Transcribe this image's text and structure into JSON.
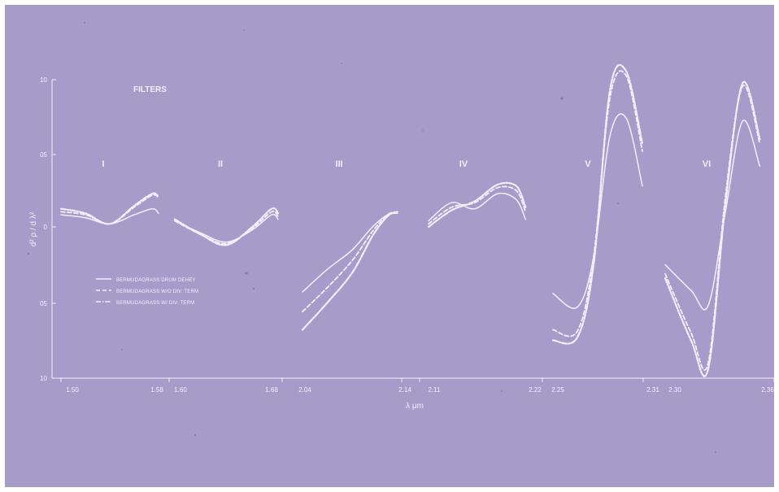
{
  "chart_data": {
    "type": "line",
    "title": "FILTERS",
    "xlabel": "λ μm",
    "ylabel": "d² ρ / d λ²",
    "y_axis": {
      "ticks": [
        "10",
        "05",
        "0",
        "05",
        "10"
      ],
      "values": [
        1.0,
        0.5,
        0.0,
        -0.5,
        -1.0
      ],
      "ylim": [
        -1.0,
        1.0
      ]
    },
    "legend": [
      {
        "label": "BERMUDAGRASS  DRUM  DEHEY",
        "style": "solid"
      },
      {
        "label": "BERMUDAGRASS  W/O  DIV.  TERM",
        "style": "dashed"
      },
      {
        "label": "BERMUDAGRASS  W/  DIV.  TERM",
        "style": "dashdot"
      }
    ],
    "grid": false,
    "colors": {
      "background": "#a79cc9",
      "curves": "#f2efff"
    },
    "panels": [
      {
        "label": "I",
        "x_ticks": [
          "1.50",
          "1.58"
        ],
        "xlim": [
          1.5,
          1.58
        ],
        "x": [
          1.5,
          1.52,
          1.54,
          1.56,
          1.575,
          1.58
        ],
        "series": [
          {
            "name": "BERMUDAGRASS  DRUM  DEHEY",
            "values": [
              0.08,
              0.06,
              0.02,
              0.08,
              0.12,
              0.09
            ]
          },
          {
            "name": "BERMUDAGRASS  W/O  DIV.  TERM",
            "values": [
              0.1,
              0.08,
              0.02,
              0.13,
              0.21,
              0.19
            ]
          },
          {
            "name": "BERMUDAGRASS  W/  DIV.  TERM",
            "values": [
              0.12,
              0.09,
              0.02,
              0.14,
              0.22,
              0.2
            ]
          }
        ]
      },
      {
        "label": "II",
        "x_ticks": [
          "1.60",
          "1.68"
        ],
        "xlim": [
          1.6,
          1.68
        ],
        "x": [
          1.6,
          1.62,
          1.64,
          1.66,
          1.675,
          1.68
        ],
        "series": [
          {
            "name": "BERMUDAGRASS  DRUM  DEHEY",
            "values": [
              0.04,
              -0.04,
              -0.1,
              -0.02,
              0.08,
              0.05
            ]
          },
          {
            "name": "BERMUDAGRASS  W/O  DIV.  TERM",
            "values": [
              0.04,
              -0.05,
              -0.11,
              -0.01,
              0.1,
              0.07
            ]
          },
          {
            "name": "BERMUDAGRASS  W/  DIV.  TERM",
            "values": [
              0.05,
              -0.05,
              -0.12,
              0.0,
              0.12,
              0.09
            ]
          }
        ]
      },
      {
        "label": "III",
        "x_ticks": [
          "2.04",
          "2.14"
        ],
        "xlim": [
          2.04,
          2.14
        ],
        "x": [
          2.04,
          2.065,
          2.09,
          2.11,
          2.125,
          2.135
        ],
        "series": [
          {
            "name": "BERMUDAGRASS  DRUM  DEHEY",
            "values": [
              -0.43,
              -0.28,
              -0.15,
              0.0,
              0.08,
              0.09
            ]
          },
          {
            "name": "BERMUDAGRASS  W/O  DIV.  TERM",
            "values": [
              -0.56,
              -0.4,
              -0.22,
              -0.03,
              0.08,
              0.1
            ]
          },
          {
            "name": "BERMUDAGRASS  W/  DIV.  TERM",
            "values": [
              -0.68,
              -0.5,
              -0.3,
              -0.06,
              0.07,
              0.1
            ]
          }
        ]
      },
      {
        "label": "IV",
        "x_ticks": [
          "2.11",
          "2.22"
        ],
        "xlim": [
          2.11,
          2.22
        ],
        "x": [
          2.11,
          2.135,
          2.16,
          2.185,
          2.205,
          2.215
        ],
        "series": [
          {
            "name": "BERMUDAGRASS  DRUM  DEHEY",
            "values": [
              0.04,
              0.16,
              0.12,
              0.22,
              0.18,
              0.05
            ]
          },
          {
            "name": "BERMUDAGRASS  W/O  DIV.  TERM",
            "values": [
              0.02,
              0.13,
              0.16,
              0.26,
              0.24,
              0.1
            ]
          },
          {
            "name": "BERMUDAGRASS  W/  DIV.  TERM",
            "values": [
              0.0,
              0.11,
              0.17,
              0.28,
              0.27,
              0.13
            ]
          }
        ]
      },
      {
        "label": "V",
        "x_ticks": [
          "2.25",
          "2.31"
        ],
        "xlim": [
          2.25,
          2.31
        ],
        "x": [
          2.25,
          2.265,
          2.275,
          2.285,
          2.295,
          2.305
        ],
        "series": [
          {
            "name": "BERMUDAGRASS  DRUM  DEHEY",
            "values": [
              -0.44,
              -0.53,
              -0.2,
              0.6,
              0.72,
              0.27
            ]
          },
          {
            "name": "BERMUDAGRASS  W/O  DIV.  TERM",
            "values": [
              -0.68,
              -0.69,
              -0.2,
              0.85,
              1.0,
              0.5
            ]
          },
          {
            "name": "BERMUDAGRASS  W/  DIV.  TERM",
            "values": [
              -0.75,
              -0.73,
              -0.25,
              0.9,
              1.03,
              0.55
            ]
          }
        ]
      },
      {
        "label": "VI",
        "x_ticks": [
          "2.30",
          "2.36"
        ],
        "xlim": [
          2.3,
          2.36
        ],
        "x": [
          2.3,
          2.315,
          2.325,
          2.335,
          2.345,
          2.355
        ],
        "series": [
          {
            "name": "BERMUDAGRASS  DRUM  DEHEY",
            "values": [
              -0.25,
              -0.42,
              -0.52,
              0.1,
              0.7,
              0.4
            ]
          },
          {
            "name": "BERMUDAGRASS  W/O  DIV.  TERM",
            "values": [
              -0.31,
              -0.7,
              -0.9,
              0.2,
              0.93,
              0.55
            ]
          },
          {
            "name": "BERMUDAGRASS  W/  DIV.  TERM",
            "values": [
              -0.34,
              -0.75,
              -0.94,
              0.15,
              0.95,
              0.58
            ]
          }
        ]
      }
    ]
  }
}
